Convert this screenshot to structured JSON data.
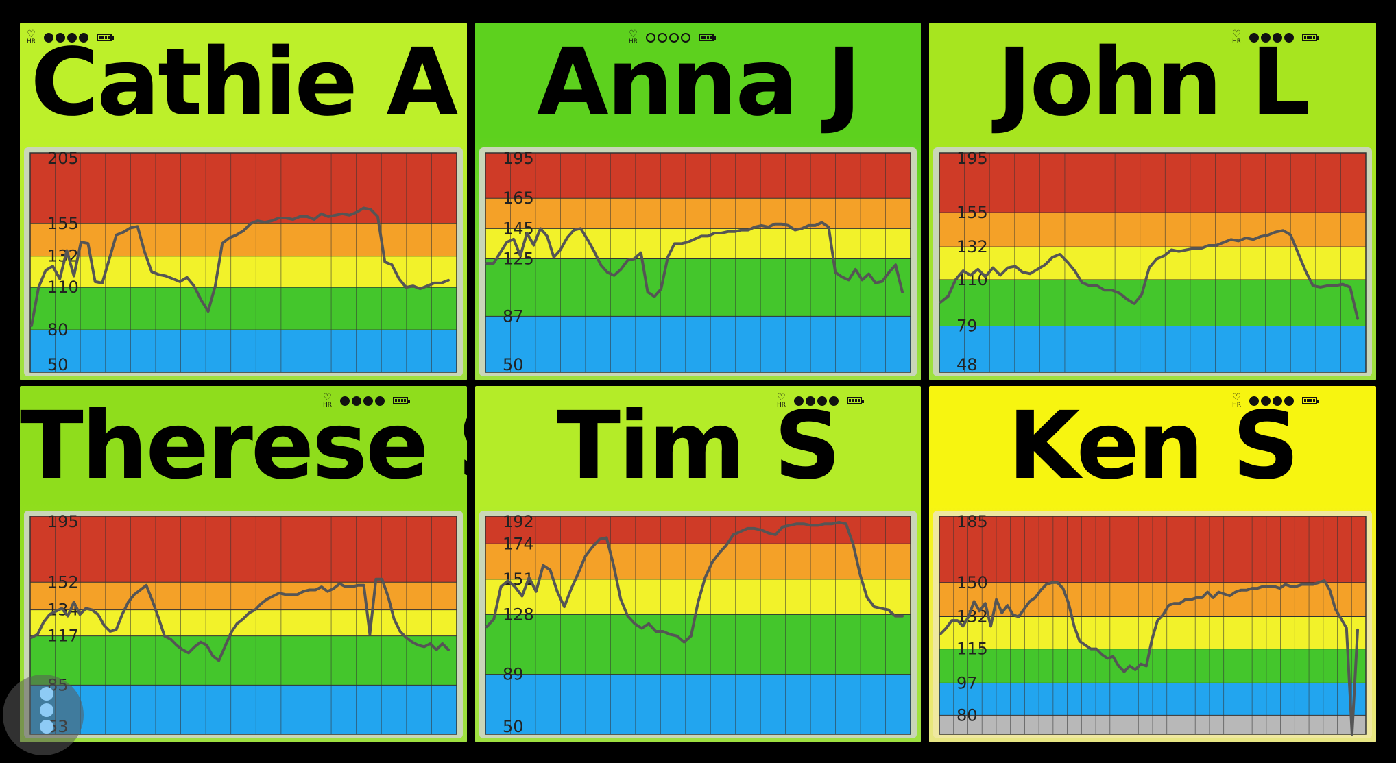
{
  "status": {
    "hr_label": "HR",
    "heart_icon": "heart-outline-icon",
    "battery_icon": "battery-icon"
  },
  "zone_colors": {
    "blue": "#22a5ef",
    "green": "#44c62c",
    "yellow": "#f2f22a",
    "orange": "#f4a128",
    "red": "#cf3b27",
    "gray": "#b8b8b8"
  },
  "panels": [
    {
      "name": "Cathie A",
      "header_color": "#bdf02a",
      "signal": [
        1,
        1,
        1,
        1
      ],
      "ticks": [
        "205",
        "155",
        "132",
        "110",
        "80",
        "50"
      ],
      "chart_data": {
        "type": "line",
        "y_range": [
          50,
          205
        ],
        "zones": [
          {
            "from": 50,
            "to": 80,
            "color": "blue"
          },
          {
            "from": 80,
            "to": 110,
            "color": "green"
          },
          {
            "from": 110,
            "to": 132,
            "color": "yellow"
          },
          {
            "from": 132,
            "to": 155,
            "color": "orange"
          },
          {
            "from": 155,
            "to": 205,
            "color": "red"
          }
        ],
        "values": [
          83,
          110,
          122,
          125,
          116,
          136,
          118,
          142,
          141,
          114,
          113,
          130,
          147,
          149,
          152,
          153,
          135,
          121,
          119,
          118,
          116,
          114,
          117,
          111,
          101,
          93,
          111,
          141,
          145,
          147,
          150,
          155,
          157,
          156,
          157,
          159,
          159,
          158,
          160,
          160,
          158,
          162,
          160,
          161,
          162,
          161,
          163,
          166,
          165,
          160,
          128,
          126,
          116,
          110,
          111,
          109,
          111,
          113,
          113,
          115
        ]
      }
    },
    {
      "name": "Anna J",
      "header_color": "#5dd11e",
      "signal": [
        0,
        0,
        0,
        0
      ],
      "ticks": [
        "195",
        "165",
        "145",
        "125",
        "87",
        "50"
      ],
      "chart_data": {
        "type": "line",
        "y_range": [
          50,
          195
        ],
        "zones": [
          {
            "from": 50,
            "to": 87,
            "color": "blue"
          },
          {
            "from": 87,
            "to": 125,
            "color": "green"
          },
          {
            "from": 125,
            "to": 145,
            "color": "yellow"
          },
          {
            "from": 145,
            "to": 165,
            "color": "orange"
          },
          {
            "from": 165,
            "to": 195,
            "color": "red"
          }
        ],
        "values": [
          122,
          122,
          129,
          136,
          138,
          127,
          142,
          134,
          145,
          140,
          126,
          131,
          139,
          144,
          145,
          138,
          130,
          121,
          116,
          114,
          118,
          124,
          125,
          129,
          103,
          100,
          105,
          126,
          135,
          135,
          136,
          138,
          140,
          140,
          142,
          142,
          143,
          143,
          144,
          144,
          146,
          147,
          146,
          148,
          148,
          147,
          144,
          145,
          147,
          147,
          149,
          146,
          116,
          113,
          111,
          118,
          111,
          115,
          109,
          110,
          116,
          121,
          103
        ]
      }
    },
    {
      "name": "John L",
      "header_color": "#a7e51f",
      "signal": [
        1,
        1,
        1,
        1
      ],
      "ticks": [
        "195",
        "155",
        "132",
        "110",
        "79",
        "48"
      ],
      "chart_data": {
        "type": "line",
        "y_range": [
          48,
          195
        ],
        "zones": [
          {
            "from": 48,
            "to": 79,
            "color": "blue"
          },
          {
            "from": 79,
            "to": 110,
            "color": "green"
          },
          {
            "from": 110,
            "to": 132,
            "color": "yellow"
          },
          {
            "from": 132,
            "to": 155,
            "color": "orange"
          },
          {
            "from": 155,
            "to": 195,
            "color": "red"
          }
        ],
        "values": [
          95,
          99,
          110,
          116,
          113,
          117,
          112,
          118,
          113,
          118,
          119,
          115,
          114,
          117,
          120,
          125,
          127,
          122,
          116,
          108,
          106,
          106,
          103,
          103,
          101,
          97,
          94,
          100,
          118,
          124,
          126,
          130,
          129,
          130,
          131,
          131,
          133,
          133,
          135,
          137,
          136,
          138,
          137,
          139,
          140,
          142,
          143,
          140,
          128,
          116,
          106,
          105,
          106,
          106,
          107,
          105,
          84
        ]
      }
    },
    {
      "name": "Therese S",
      "header_color": "#8fdd1c",
      "signal": [
        1,
        1,
        1,
        1
      ],
      "ticks": [
        "195",
        "152",
        "134",
        "117",
        "85",
        "53"
      ],
      "chart_data": {
        "type": "line",
        "y_range": [
          53,
          195
        ],
        "zones": [
          {
            "from": 53,
            "to": 85,
            "color": "blue"
          },
          {
            "from": 85,
            "to": 117,
            "color": "green"
          },
          {
            "from": 117,
            "to": 134,
            "color": "yellow"
          },
          {
            "from": 134,
            "to": 152,
            "color": "orange"
          },
          {
            "from": 152,
            "to": 195,
            "color": "red"
          }
        ],
        "values": [
          116,
          118,
          126,
          131,
          133,
          135,
          130,
          139,
          131,
          135,
          134,
          131,
          124,
          120,
          121,
          131,
          139,
          144,
          147,
          150,
          140,
          129,
          117,
          115,
          111,
          108,
          106,
          110,
          113,
          111,
          104,
          101,
          110,
          119,
          125,
          128,
          132,
          134,
          138,
          141,
          143,
          145,
          144,
          144,
          144,
          146,
          147,
          147,
          149,
          146,
          148,
          151,
          149,
          149,
          150,
          150,
          118,
          154,
          154,
          143,
          128,
          120,
          116,
          113,
          111,
          110,
          112,
          108,
          112,
          108
        ]
      }
    },
    {
      "name": "Tim S",
      "header_color": "#b4ec28",
      "signal": [
        1,
        1,
        1,
        1
      ],
      "ticks": [
        "192",
        "174",
        "151",
        "128",
        "89",
        "50"
      ],
      "chart_data": {
        "type": "line",
        "y_range": [
          50,
          192
        ],
        "zones": [
          {
            "from": 50,
            "to": 89,
            "color": "blue"
          },
          {
            "from": 89,
            "to": 128,
            "color": "green"
          },
          {
            "from": 128,
            "to": 151,
            "color": "yellow"
          },
          {
            "from": 151,
            "to": 174,
            "color": "orange"
          },
          {
            "from": 174,
            "to": 192,
            "color": "red"
          }
        ],
        "values": [
          120,
          125,
          146,
          150,
          146,
          140,
          152,
          143,
          160,
          157,
          143,
          133,
          145,
          155,
          166,
          172,
          177,
          178,
          160,
          138,
          127,
          122,
          119,
          122,
          117,
          117,
          115,
          114,
          110,
          114,
          136,
          152,
          162,
          168,
          173,
          180,
          182,
          184,
          184,
          183,
          181,
          180,
          185,
          186,
          187,
          187,
          186,
          186,
          187,
          187,
          188,
          187,
          174,
          154,
          139,
          133,
          132,
          131,
          127,
          127
        ]
      }
    },
    {
      "name": "Ken S",
      "header_color": "#f7f510",
      "signal": [
        1,
        1,
        1,
        1
      ],
      "ticks": [
        "185",
        "150",
        "132",
        "115",
        "97",
        "80"
      ],
      "chart_data": {
        "type": "line",
        "y_range": [
          70,
          185
        ],
        "zones": [
          {
            "from": 70,
            "to": 80,
            "color": "gray"
          },
          {
            "from": 80,
            "to": 97,
            "color": "blue"
          },
          {
            "from": 97,
            "to": 115,
            "color": "green"
          },
          {
            "from": 115,
            "to": 132,
            "color": "yellow"
          },
          {
            "from": 132,
            "to": 150,
            "color": "orange"
          },
          {
            "from": 150,
            "to": 185,
            "color": "red"
          }
        ],
        "values": [
          123,
          126,
          130,
          130,
          127,
          132,
          140,
          135,
          139,
          127,
          141,
          134,
          138,
          133,
          132,
          136,
          140,
          142,
          146,
          149,
          150,
          150,
          147,
          139,
          127,
          119,
          117,
          115,
          115,
          112,
          110,
          111,
          106,
          103,
          106,
          104,
          107,
          106,
          120,
          130,
          133,
          138,
          139,
          139,
          141,
          141,
          142,
          142,
          145,
          142,
          145,
          144,
          143,
          145,
          146,
          146,
          147,
          147,
          148,
          148,
          148,
          147,
          149,
          148,
          148,
          149,
          149,
          149,
          150,
          151,
          146,
          136,
          131,
          126,
          70,
          125
        ]
      }
    }
  ]
}
